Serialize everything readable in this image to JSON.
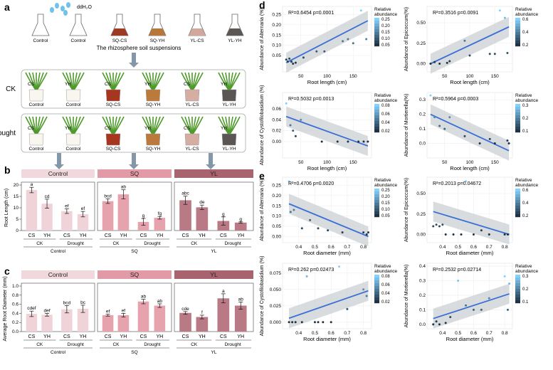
{
  "panels": {
    "a": {
      "label": "a",
      "water_label": "ddH₂O",
      "flasks": [
        {
          "label": "Control",
          "color": "#ffffff"
        },
        {
          "label": "Control",
          "color": "#ffffff"
        },
        {
          "label": "SQ-CS",
          "color": "#9e3a24"
        },
        {
          "label": "SQ-YH",
          "color": "#b8763a"
        },
        {
          "label": "YL-CS",
          "color": "#d2a79c"
        },
        {
          "label": "YL-YH",
          "color": "#5c5753"
        }
      ],
      "suspension_caption": "The rhizosphere soil suspensions",
      "rows": [
        {
          "label": "CK",
          "pot_tags": [
            "CS",
            "YH",
            "CS",
            "YH",
            "CS",
            "YH"
          ]
        },
        {
          "label": "Drought",
          "pot_tags": [
            "CS",
            "YH",
            "CS",
            "YH",
            "CS",
            "YH"
          ]
        }
      ],
      "pot_labels": [
        "Control",
        "Control",
        "SQ-CS",
        "SQ-YH",
        "YL-CS",
        "YL-YH"
      ]
    },
    "b": {
      "label": "b",
      "chart_data": {
        "type": "bar",
        "ylabel": "Root  Length (cm)",
        "ylim": [
          0,
          20
        ],
        "yticks": [
          0,
          5,
          10,
          15,
          20
        ],
        "groups": [
          {
            "name": "Control",
            "color": "#f1d8dd",
            "bar_color": "#f0d3d8",
            "letters": [
              "a",
              "cd",
              "ef",
              "ef"
            ],
            "values": [
              17.8,
              11.8,
              8.5,
              7.2
            ],
            "errors": [
              1.2,
              2.0,
              1.0,
              1.2
            ]
          },
          {
            "name": "SQ",
            "color": "#e29aa7",
            "bar_color": "#e6a3ae",
            "letters": [
              "bcd",
              "ab",
              "g",
              "fg"
            ],
            "values": [
              12.9,
              15.9,
              3.8,
              5.6
            ],
            "errors": [
              1.0,
              2.0,
              1.5,
              0.6
            ]
          },
          {
            "name": "YL",
            "color": "#a8636f",
            "bar_color": "#b97985",
            "letters": [
              "abc",
              "de",
              "g",
              "g"
            ],
            "values": [
              13.3,
              10.2,
              4.2,
              3.5
            ],
            "errors": [
              1.8,
              1.0,
              1.8,
              0.3
            ]
          }
        ],
        "categories": [
          "CS",
          "YH",
          "CS",
          "YH"
        ],
        "subgroups": [
          "CK",
          "Drought"
        ]
      }
    },
    "c": {
      "label": "c",
      "chart_data": {
        "type": "bar",
        "ylabel": "Average Root Diameter (mm)",
        "ylim": [
          0,
          1.0
        ],
        "yticks": [
          "0.0",
          "0.2",
          "0.4",
          "0.6",
          "0.8",
          "1.0"
        ],
        "groups": [
          {
            "name": "Control",
            "color": "#f1d8dd",
            "bar_color": "#f0d3d8",
            "letters": [
              "cdef",
              "def",
              "bcd",
              "bc"
            ],
            "values": [
              0.39,
              0.37,
              0.49,
              0.5
            ],
            "errors": [
              0.06,
              0.03,
              0.08,
              0.08
            ]
          },
          {
            "name": "SQ",
            "color": "#e29aa7",
            "bar_color": "#e6a3ae",
            "letters": [
              "ef",
              "ef",
              "ab",
              "ab"
            ],
            "values": [
              0.36,
              0.36,
              0.66,
              0.57
            ],
            "errors": [
              0.02,
              0.04,
              0.05,
              0.04
            ]
          },
          {
            "name": "YL",
            "color": "#a8636f",
            "bar_color": "#b97985",
            "letters": [
              "cde",
              "f",
              "a",
              "ab"
            ],
            "values": [
              0.41,
              0.32,
              0.73,
              0.57
            ],
            "errors": [
              0.03,
              0.04,
              0.1,
              0.08
            ]
          }
        ],
        "categories": [
          "CS",
          "YH",
          "CS",
          "YH"
        ],
        "subgroups": [
          "CK",
          "Drought"
        ]
      }
    },
    "d": {
      "label": "d",
      "legend_title": "Relative abundance",
      "xlabel": "Root length (cm)",
      "plots": [
        {
          "ylabel": "Abundance of Alternaria (%)",
          "stat": "R²=0.6454 p=0.0001",
          "xlim": [
            15,
            185
          ],
          "ylim": [
            -0.03,
            0.29
          ],
          "xticks": [
            50,
            100,
            150
          ],
          "yticks": [
            "0.05",
            "0.10",
            "0.15",
            "0.20",
            "0.25"
          ],
          "legend_ticks": [
            "0.25",
            "0.20",
            "0.15",
            "0.10",
            "0.05"
          ],
          "points": [
            [
              22,
              0.03
            ],
            [
              25,
              0.02
            ],
            [
              28,
              0.035
            ],
            [
              32,
              0.02
            ],
            [
              35,
              0.01
            ],
            [
              40,
              0.015
            ],
            [
              55,
              0.04
            ],
            [
              80,
              0.07
            ],
            [
              95,
              0.07
            ],
            [
              130,
              0.12
            ],
            [
              140,
              0.13
            ],
            [
              165,
              0.27
            ],
            [
              175,
              0.13
            ],
            [
              150,
              0.11
            ]
          ],
          "line": [
            [
              22,
              0.015
            ],
            [
              178,
              0.22
            ]
          ]
        },
        {
          "ylabel": "Abundance of Epicoccum(%)",
          "stat": "R²=0.3516 p=0.0091",
          "xlim": [
            15,
            185
          ],
          "ylim": [
            -0.1,
            0.7
          ],
          "xticks": [
            50,
            100,
            150
          ],
          "yticks": [
            "0.00",
            "0.25",
            "0.50"
          ],
          "legend_ticks": [
            "0.6",
            "0.4",
            "0.2"
          ],
          "points": [
            [
              22,
              0.0
            ],
            [
              30,
              0.02
            ],
            [
              40,
              0.0
            ],
            [
              55,
              0.01
            ],
            [
              60,
              0.03
            ],
            [
              90,
              0.28
            ],
            [
              100,
              0.1
            ],
            [
              140,
              0.12
            ],
            [
              150,
              0.12
            ],
            [
              160,
              0.65
            ],
            [
              175,
              0.13
            ],
            [
              170,
              0.56
            ]
          ],
          "line": [
            [
              22,
              0.0
            ],
            [
              178,
              0.45
            ]
          ]
        },
        {
          "ylabel": "Abundance of Cystofilobasidium (%)",
          "stat": "R²=0.5032 p=0.0013",
          "xlim": [
            15,
            185
          ],
          "ylim": [
            -0.03,
            0.09
          ],
          "xticks": [
            50,
            100,
            150
          ],
          "yticks": [
            "0.00",
            "0.02",
            "0.04",
            "0.06"
          ],
          "legend_ticks": [
            "0.08",
            "0.06",
            "0.04",
            "0.02"
          ],
          "points": [
            [
              22,
              0.07
            ],
            [
              30,
              0.03
            ],
            [
              35,
              0.02
            ],
            [
              40,
              0.01
            ],
            [
              50,
              0.04
            ],
            [
              90,
              0.0
            ],
            [
              120,
              0.0
            ],
            [
              140,
              0.0
            ],
            [
              160,
              0.0
            ],
            [
              170,
              0.0
            ],
            [
              178,
              0.0
            ]
          ],
          "line": [
            [
              22,
              0.046
            ],
            [
              178,
              -0.008
            ]
          ]
        },
        {
          "ylabel": "Abundance of Mortierella(%)",
          "stat": "R²=0.5964 p=0.0003",
          "xlim": [
            15,
            185
          ],
          "ylim": [
            -0.1,
            0.35
          ],
          "xticks": [
            50,
            100,
            150
          ],
          "yticks": [
            "0.0",
            "0.1",
            "0.2",
            "0.3"
          ],
          "legend_ticks": [
            "0.3",
            "0.2",
            "0.1"
          ],
          "points": [
            [
              22,
              0.33
            ],
            [
              30,
              0.18
            ],
            [
              40,
              0.12
            ],
            [
              50,
              0.1
            ],
            [
              60,
              0.18
            ],
            [
              90,
              0.05
            ],
            [
              120,
              0.0
            ],
            [
              140,
              0.03
            ],
            [
              150,
              0.0
            ],
            [
              175,
              0.02
            ],
            [
              178,
              0.0
            ]
          ],
          "line": [
            [
              22,
              0.2
            ],
            [
              178,
              -0.05
            ]
          ]
        }
      ]
    },
    "e": {
      "label": "e",
      "legend_title": "Relative abundance",
      "xlabel": "Root diameter (mm)",
      "plots": [
        {
          "ylabel": "Abundance of Alternaria (%)",
          "stat": "R²=0.4706 p=0.0020",
          "xlim": [
            0.3,
            0.85
          ],
          "ylim": [
            -0.03,
            0.29
          ],
          "xticks": [
            "0.4",
            "0.5",
            "0.6",
            "0.7",
            "0.8"
          ],
          "yticks": [
            "0.00",
            "0.05",
            "0.10",
            "0.15",
            "0.20",
            "0.25"
          ],
          "legend_ticks": [
            "0.25",
            "0.20",
            "0.15",
            "0.10",
            "0.05"
          ],
          "points": [
            [
              0.34,
              0.27
            ],
            [
              0.35,
              0.12
            ],
            [
              0.37,
              0.13
            ],
            [
              0.42,
              0.04
            ],
            [
              0.47,
              0.08
            ],
            [
              0.52,
              0.04
            ],
            [
              0.58,
              0.03
            ],
            [
              0.67,
              0.02
            ],
            [
              0.8,
              0.02
            ],
            [
              0.82,
              0.01
            ],
            [
              0.83,
              0.02
            ]
          ],
          "line": [
            [
              0.34,
              0.16
            ],
            [
              0.83,
              0.0
            ]
          ]
        },
        {
          "ylabel": "Abundance of Epicoccum(%)",
          "stat": "R²=0.2013 p=0.04672",
          "xlim": [
            0.3,
            0.85
          ],
          "ylim": [
            -0.1,
            0.7
          ],
          "xticks": [
            "0.4",
            "0.5",
            "0.6",
            "0.7",
            "0.8"
          ],
          "yticks": [
            "0.00",
            "0.25",
            "0.50"
          ],
          "legend_ticks": [
            "0.6",
            "0.4",
            "0.2"
          ],
          "points": [
            [
              0.34,
              0.1
            ],
            [
              0.36,
              0.12
            ],
            [
              0.38,
              0.1
            ],
            [
              0.4,
              0.12
            ],
            [
              0.42,
              0.0
            ],
            [
              0.47,
              0.0
            ],
            [
              0.52,
              0.0
            ],
            [
              0.55,
              0.65
            ],
            [
              0.6,
              0.0
            ],
            [
              0.65,
              0.05
            ],
            [
              0.7,
              0.0
            ],
            [
              0.8,
              0.0
            ],
            [
              0.82,
              0.0
            ]
          ],
          "line": [
            [
              0.34,
              0.28
            ],
            [
              0.83,
              0.0
            ]
          ]
        },
        {
          "ylabel": "Abundance of Cystofilobasidium (%)",
          "stat": "R²=0.262 p=0.02473",
          "xlim": [
            0.3,
            0.85
          ],
          "ylim": [
            -0.01,
            0.09
          ],
          "xticks": [
            "0.4",
            "0.5",
            "0.6",
            "0.7",
            "0.8"
          ],
          "yticks": [
            "0.000",
            "0.025",
            "0.050",
            "0.075"
          ],
          "legend_ticks": [
            "0.08",
            "0.06",
            "0.04",
            "0.02"
          ],
          "points": [
            [
              0.34,
              0.0
            ],
            [
              0.36,
              0.0
            ],
            [
              0.38,
              0.0
            ],
            [
              0.42,
              0.0
            ],
            [
              0.45,
              0.07
            ],
            [
              0.5,
              0.0
            ],
            [
              0.52,
              0.0
            ],
            [
              0.55,
              0.0
            ],
            [
              0.6,
              0.0
            ],
            [
              0.65,
              0.085
            ],
            [
              0.7,
              0.02
            ],
            [
              0.8,
              0.05
            ],
            [
              0.82,
              0.04
            ]
          ],
          "line": [
            [
              0.34,
              0.006
            ],
            [
              0.83,
              0.048
            ]
          ]
        },
        {
          "ylabel": "Abundance of Mortierella(%)",
          "stat": "R²=0.2532 p=0.02714",
          "xlim": [
            0.3,
            0.85
          ],
          "ylim": [
            -0.03,
            0.42
          ],
          "xticks": [
            "0.4",
            "0.5",
            "0.6",
            "0.7",
            "0.8"
          ],
          "yticks": [
            "0.0",
            "0.1",
            "0.2",
            "0.3",
            "0.4"
          ],
          "legend_ticks": [
            "0.3",
            "0.2",
            "0.1"
          ],
          "points": [
            [
              0.34,
              0.0
            ],
            [
              0.36,
              0.02
            ],
            [
              0.38,
              0.0
            ],
            [
              0.42,
              0.01
            ],
            [
              0.45,
              0.05
            ],
            [
              0.5,
              0.3
            ],
            [
              0.55,
              0.13
            ],
            [
              0.6,
              0.1
            ],
            [
              0.65,
              0.1
            ],
            [
              0.7,
              0.18
            ],
            [
              0.8,
              0.33
            ],
            [
              0.82,
              0.1
            ],
            [
              0.83,
              0.28
            ]
          ],
          "line": [
            [
              0.34,
              0.04
            ],
            [
              0.83,
              0.21
            ]
          ]
        }
      ]
    }
  }
}
